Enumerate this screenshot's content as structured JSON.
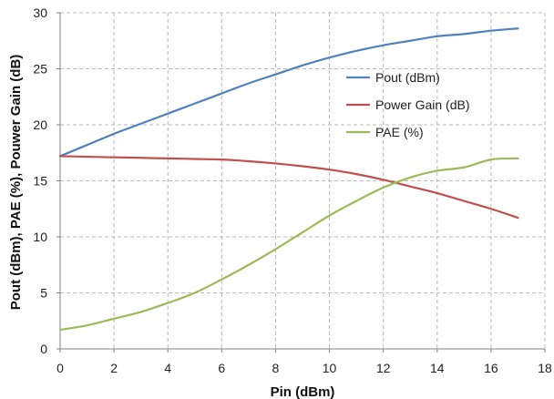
{
  "chart_data": {
    "type": "line",
    "title": "",
    "xlabel": "Pin (dBm)",
    "ylabel": "Pout (dBm), PAE (%), Pouwer Gain (dB)",
    "xlim": [
      0,
      18
    ],
    "ylim": [
      0,
      30
    ],
    "xticks": [
      0,
      2,
      4,
      6,
      8,
      10,
      12,
      14,
      16,
      18
    ],
    "yticks": [
      0,
      5,
      10,
      15,
      20,
      25,
      30
    ],
    "grid": true,
    "legend_position": "upper-right-inside",
    "series": [
      {
        "name": "Pout (dBm)",
        "color": "#4F81BD",
        "x": [
          0,
          1,
          2,
          3,
          4,
          5,
          6,
          7,
          8,
          9,
          10,
          11,
          12,
          13,
          14,
          15,
          16,
          17
        ],
        "values": [
          17.2,
          18.2,
          19.2,
          20.1,
          21.0,
          21.9,
          22.8,
          23.7,
          24.5,
          25.3,
          26.0,
          26.6,
          27.1,
          27.5,
          27.9,
          28.1,
          28.4,
          28.6
        ]
      },
      {
        "name": "Power Gain (dB)",
        "color": "#C0504D",
        "x": [
          0,
          1,
          2,
          3,
          4,
          5,
          6,
          7,
          8,
          9,
          10,
          11,
          12,
          13,
          14,
          15,
          16,
          17
        ],
        "values": [
          17.2,
          17.15,
          17.1,
          17.05,
          17.0,
          16.95,
          16.9,
          16.75,
          16.55,
          16.3,
          16.0,
          15.6,
          15.1,
          14.5,
          13.9,
          13.2,
          12.5,
          11.7
        ]
      },
      {
        "name": "PAE (%)",
        "color": "#9BBB59",
        "x": [
          0,
          1,
          2,
          3,
          4,
          5,
          6,
          7,
          8,
          9,
          10,
          11,
          12,
          13,
          14,
          15,
          16,
          17
        ],
        "values": [
          1.7,
          2.1,
          2.7,
          3.3,
          4.1,
          5.0,
          6.2,
          7.5,
          8.9,
          10.4,
          11.9,
          13.2,
          14.4,
          15.3,
          15.9,
          16.2,
          16.9,
          17.0
        ]
      }
    ]
  }
}
